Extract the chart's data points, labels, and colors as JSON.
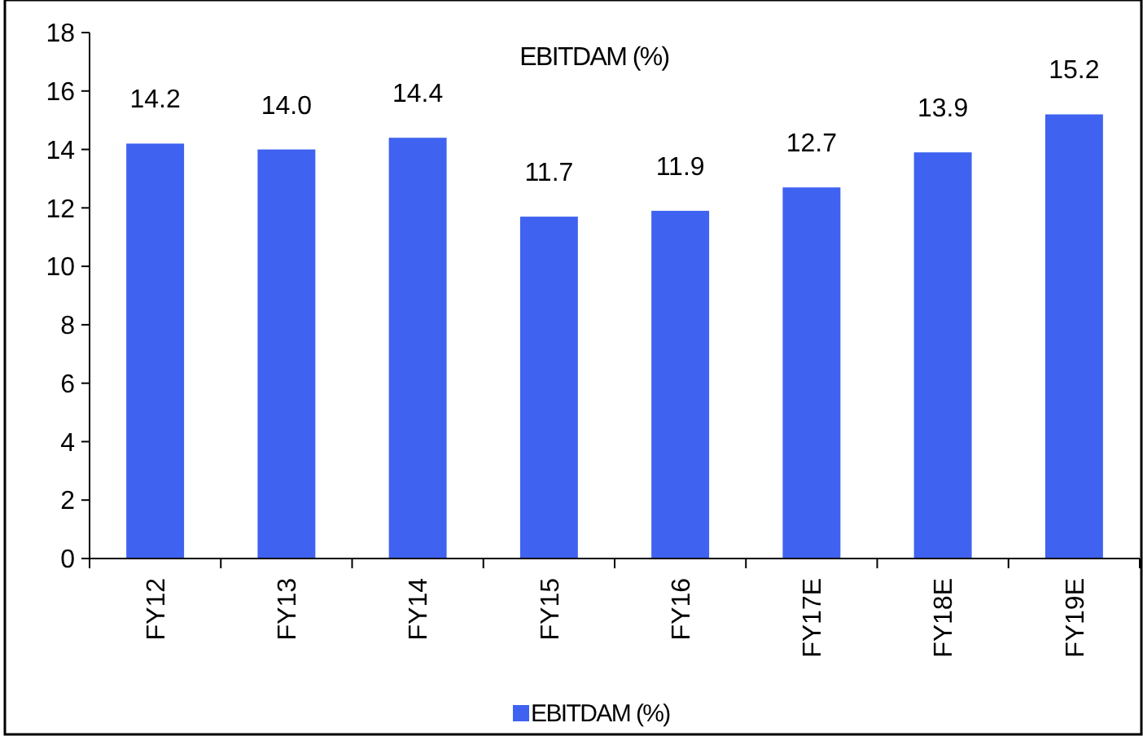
{
  "chart_data": {
    "type": "bar",
    "title": "EBITDAM (%)",
    "categories": [
      "FY12",
      "FY13",
      "FY14",
      "FY15",
      "FY16",
      "FY17E",
      "FY18E",
      "FY19E"
    ],
    "series": [
      {
        "name": "EBITDAM (%)",
        "color": "#3f63f0",
        "values": [
          14.2,
          14.0,
          14.4,
          11.7,
          11.9,
          12.7,
          13.9,
          15.2
        ],
        "value_labels": [
          "14.2",
          "14.0",
          "14.4",
          "11.7",
          "11.9",
          "12.7",
          "13.9",
          "15.2"
        ]
      }
    ],
    "ylim": [
      0,
      18
    ],
    "yticks": [
      0,
      2,
      4,
      6,
      8,
      10,
      12,
      14,
      16,
      18
    ],
    "legend": "bottom",
    "grid": false
  }
}
